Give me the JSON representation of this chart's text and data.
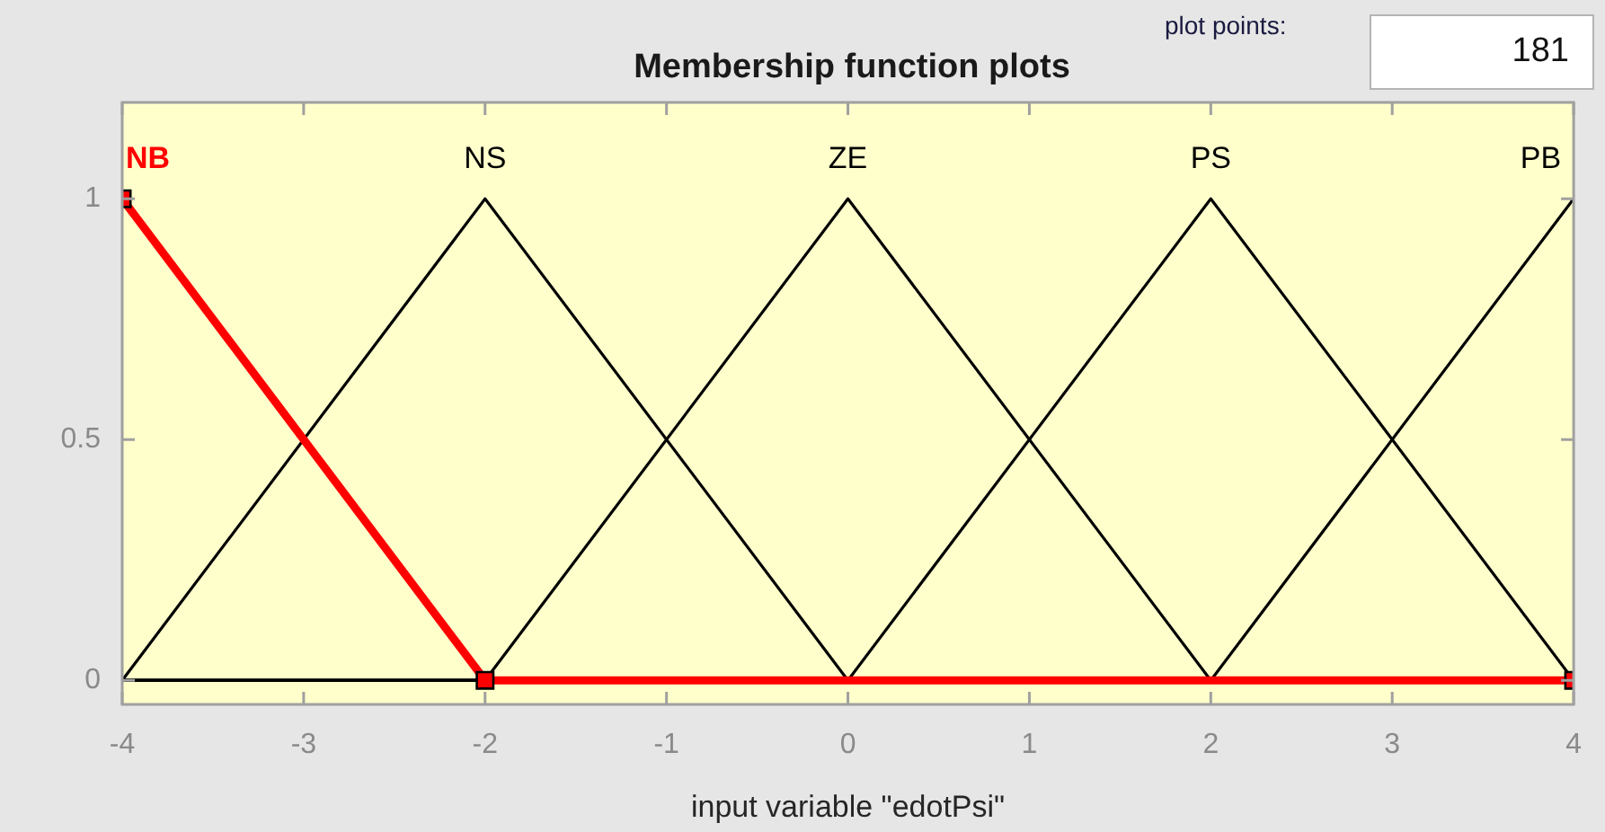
{
  "chart_data": {
    "type": "line",
    "title": "Membership function plots",
    "xlabel": "input variable \"edotPsi\"",
    "annotations": [
      "plot points:",
      "181"
    ],
    "xlim": [
      -4,
      4
    ],
    "xticks": [
      -4,
      -3,
      -2,
      -1,
      0,
      1,
      2,
      3,
      4
    ],
    "ylim": [
      -0.05,
      1.2
    ],
    "yticks": [
      0,
      0.5,
      1
    ],
    "line_style": "solid",
    "series": [
      {
        "name": "NB",
        "color": "#ff0000",
        "marker": "square",
        "x": [
          -4,
          -2,
          4
        ],
        "values": [
          1,
          0,
          0
        ]
      },
      {
        "name": "NS",
        "color": "#000000",
        "x": [
          -4,
          -2,
          0,
          4
        ],
        "values": [
          0,
          1,
          0,
          0
        ]
      },
      {
        "name": "ZE",
        "color": "#000000",
        "x": [
          -4,
          -2,
          0,
          2,
          4
        ],
        "values": [
          0,
          0,
          1,
          0,
          0
        ]
      },
      {
        "name": "PS",
        "color": "#000000",
        "x": [
          -4,
          0,
          2,
          4
        ],
        "values": [
          0,
          0,
          1,
          0
        ]
      },
      {
        "name": "PB",
        "color": "#000000",
        "x": [
          -4,
          2,
          4
        ],
        "values": [
          0,
          0,
          1
        ]
      }
    ]
  }
}
